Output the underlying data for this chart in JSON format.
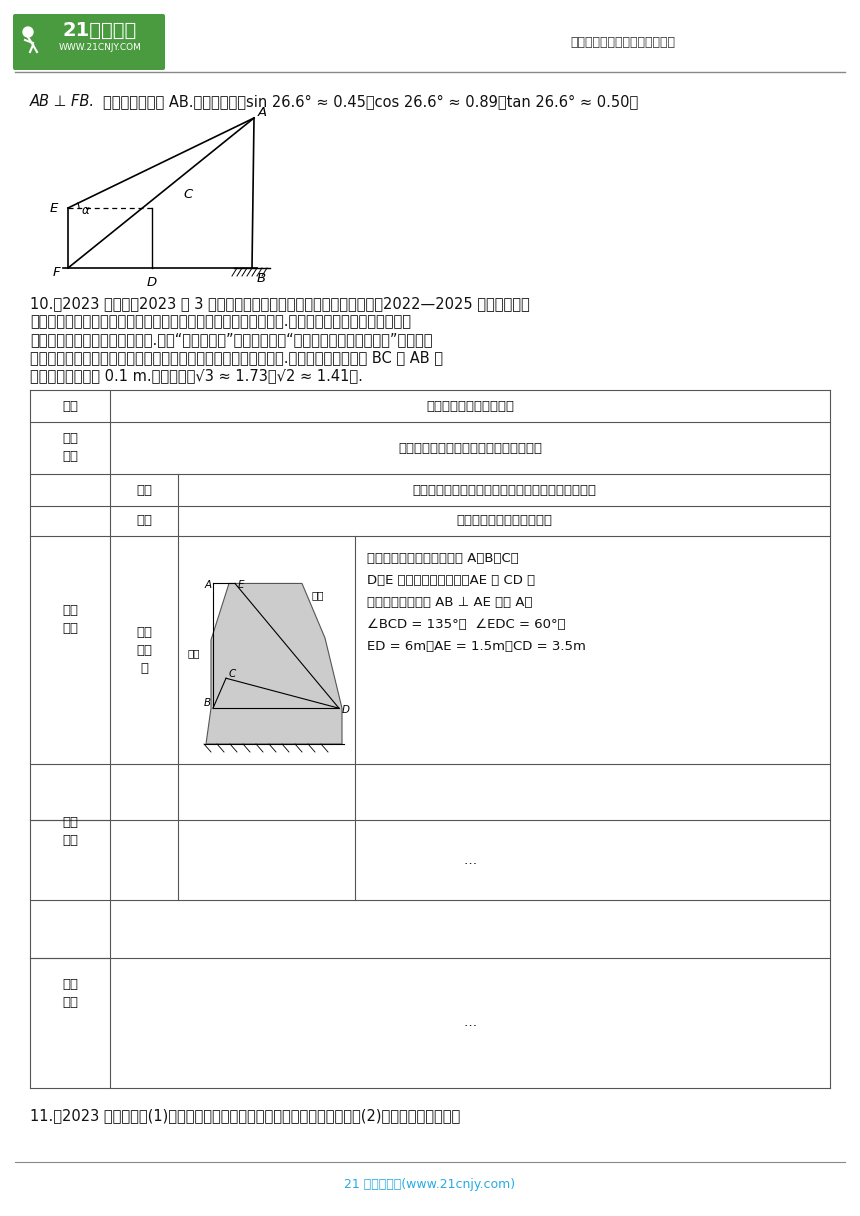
{
  "bg_color": "#ffffff",
  "header_right": "中小学教育资源及组卷应用平台",
  "footer_text": "21 世纪教育网(www.21cnjy.com)",
  "line1_part1": "AB ⊥ FB.",
  "line1_part2": "求该景观灯的高 AB.",
  "line1_part3": "（参考数据：sin 26.6°≈ 0.45，cos 26.6°≈ 0.89，tan 26.6°≈ 0.50）",
  "p10_lines": [
    "10.【2023 年山西】2023 年 3 月，水利部印发《母亲河复苏行动河湖名单（2022—2025 年）》，我省",
    "境内有汾河、桑干河、洋河、清漳河、浊漳河、沁河六条河流入选.在推进实施母亲河复苏行动中，",
    "需要砌筑洛种驳岸（也叫护坡）.某校“综合与实践”小组的同学把“母亲河驳岸的调研与计算”作为一项",
    "课题活动，利用课余时间完成了实践调查，并形成了如下活动报告.请根据活动报告计算 BC 和 AB 的",
    "长度（结果精确到 0.1 m.参考数据：√3 ≈ 1.73，√2 ≈ 1.41）."
  ],
  "p11_line": "11.【2023 年江西】图(1)是某红色文化主题公园内的雕塑，将其抽象成如图(2)所示的示意图，已知",
  "table_title": "母亲河驳岸的调研与计算",
  "survey_content": "资料查阅、水利部门走访、实地查看了解",
  "func_content": "驳岸是用来保护河岸，阻止河岸崩塌或冲刷的构筑物",
  "material_content": "所需材料为石料、混凝土等",
  "data_lines": [
    "相关数据及说明，图中，点 A、B、C、",
    "D、E 在同一竖直平面内，AE 与 CD 均",
    "与地面平行，岸墙 AB ⊥ AE 于点 A，",
    "∠BCD = 135°，  ∠EDC = 60°，",
    "ED = 6m，AE = 1.5m，CD = 3.5m"
  ],
  "logo_green": "#4a9a3f",
  "text_color": "#111111",
  "line_color": "#888888",
  "table_line_color": "#555555",
  "footer_color": "#29abe2"
}
